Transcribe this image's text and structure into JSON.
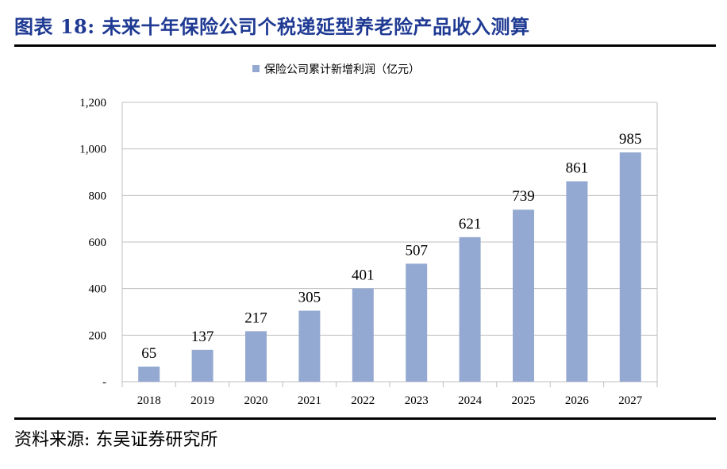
{
  "figure": {
    "title": "图表 18:  未来十年保险公司个税递延型养老险产品收入测算",
    "source": "资料来源:  东吴证券研究所"
  },
  "colors": {
    "bar": "#94a9d1",
    "grid": "#bfbfbf",
    "title": "#1f3a93"
  },
  "chart_data": {
    "type": "bar",
    "categories": [
      "2018",
      "2019",
      "2020",
      "2021",
      "2022",
      "2023",
      "2024",
      "2025",
      "2026",
      "2027"
    ],
    "series": [
      {
        "name": "保险公司累计新增利润（亿元）",
        "values": [
          65,
          137,
          217,
          305,
          401,
          507,
          621,
          739,
          861,
          985
        ]
      }
    ],
    "ylim": [
      0,
      1200
    ],
    "yticks": [
      0,
      200,
      400,
      600,
      800,
      1000,
      1200
    ],
    "ytick_labels": [
      "-",
      "200",
      "400",
      "600",
      "800",
      "1,000",
      "1,200"
    ],
    "data_labels": [
      "65",
      "137",
      "217",
      "305",
      "401",
      "507",
      "621",
      "739",
      "861",
      "985"
    ],
    "grid": true,
    "legend_position": "top-center"
  }
}
